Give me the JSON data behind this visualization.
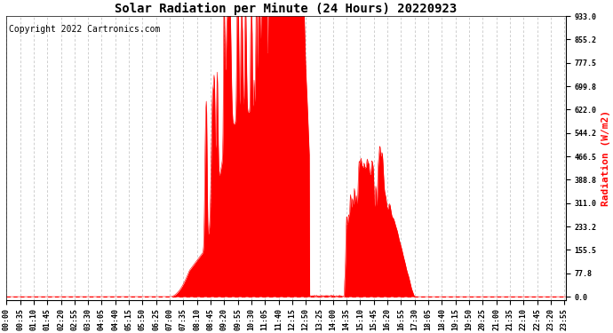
{
  "title": "Solar Radiation per Minute (24 Hours) 20220923",
  "copyright_text": "Copyright 2022 Cartronics.com",
  "ylabel": "Radiation (W/m2)",
  "ylabel_color": "#FF0000",
  "fill_color": "#FF0000",
  "line_color": "#FF0000",
  "background_color": "#FFFFFF",
  "grid_color": "#BBBBBB",
  "yticks": [
    0.0,
    77.8,
    155.5,
    233.2,
    311.0,
    388.8,
    466.5,
    544.2,
    622.0,
    699.8,
    777.5,
    855.2,
    933.0
  ],
  "ymax": 933.0,
  "total_minutes": 1440,
  "x_tick_interval": 35,
  "dashed_line_color": "#FF0000",
  "copyright_fontsize": 7,
  "title_fontsize": 10,
  "ylabel_fontsize": 8,
  "tick_fontsize": 6
}
